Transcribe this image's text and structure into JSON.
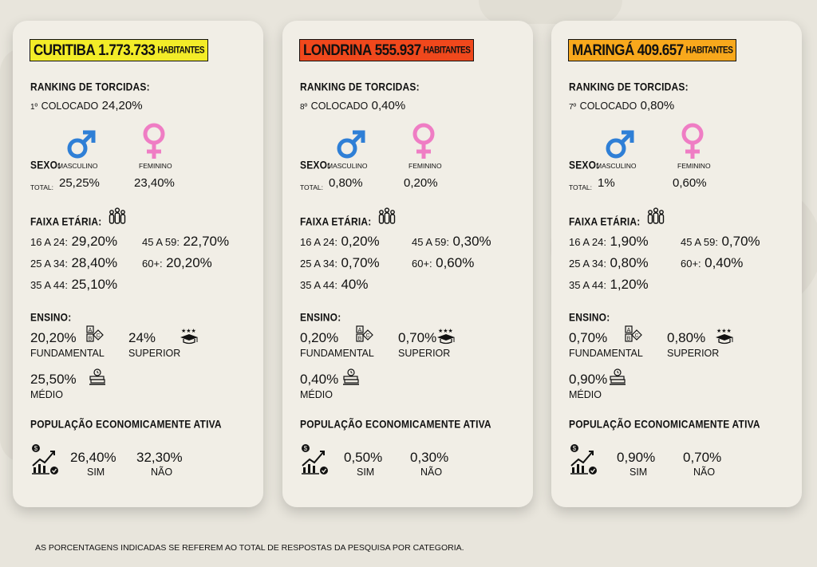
{
  "cards": [
    {
      "city": "CURITIBA",
      "population": "1.773.733",
      "habitantes": "HABITANTES",
      "title_color": "#f3ec28",
      "ranking_title": "RANKING DE TORCIDAS:",
      "ranking_ord": "1º",
      "ranking_label": "COLOCADO",
      "ranking_value": "24,20%",
      "sexo_label": "SEXO:",
      "masculino": "MASCULINO",
      "feminino": "FEMININO",
      "total_label": "TOTAL:",
      "male_value": "25,25%",
      "female_value": "23,40%",
      "faixa_title": "FAIXA ETÁRIA:",
      "age": {
        "a16_label": "16 A 24:",
        "a16": "29,20%",
        "a25_label": "25 A 34:",
        "a25": "28,40%",
        "a35_label": "35 A 44:",
        "a35": "25,10%",
        "a45_label": "45 A 59:",
        "a45": "22,70%",
        "a60_label": "60+:",
        "a60": "20,20%"
      },
      "ensino_title": "ENSINO:",
      "fundamental_value": "20,20%",
      "fundamental_label": "FUNDAMENTAL",
      "superior_value": "24%",
      "superior_label": "SUPERIOR",
      "medio_value": "25,50%",
      "medio_label": "MÉDIO",
      "pea_title": "POPULAÇÃO ECONOMICAMENTE ATIVA",
      "sim_value": "26,40%",
      "sim_label": "SIM",
      "nao_value": "32,30%",
      "nao_label": "NÃO"
    },
    {
      "city": "LONDRINA",
      "population": "555.937",
      "habitantes": "HABITANTES",
      "title_color": "#f0481c",
      "ranking_title": "RANKING DE TORCIDAS:",
      "ranking_ord": "8º",
      "ranking_label": "COLOCADO",
      "ranking_value": "0,40%",
      "sexo_label": "SEXO:",
      "masculino": "MASCULINO",
      "feminino": "FEMININO",
      "total_label": "TOTAL:",
      "male_value": "0,80%",
      "female_value": "0,20%",
      "faixa_title": "FAIXA ETÁRIA:",
      "age": {
        "a16_label": "16 A 24:",
        "a16": "0,20%",
        "a25_label": "25 A 34:",
        "a25": "0,70%",
        "a35_label": "35 A 44:",
        "a35": "40%",
        "a45_label": "45 A 59:",
        "a45": "0,30%",
        "a60_label": "60+:",
        "a60": "0,60%"
      },
      "ensino_title": "ENSINO:",
      "fundamental_value": "0,20%",
      "fundamental_label": "FUNDAMENTAL",
      "superior_value": "0,70%",
      "superior_label": "SUPERIOR",
      "medio_value": "0,40%",
      "medio_label": "MÉDIO",
      "pea_title": "POPULAÇÃO ECONOMICAMENTE ATIVA",
      "sim_value": "0,50%",
      "sim_label": "SIM",
      "nao_value": "0,30%",
      "nao_label": "NÃO"
    },
    {
      "city": "MARINGÁ",
      "population": "409.657",
      "habitantes": "HABITANTES",
      "title_color": "#f8a81c",
      "ranking_title": "RANKING DE TORCIDAS:",
      "ranking_ord": "7º",
      "ranking_label": "COLOCADO",
      "ranking_value": "0,80%",
      "sexo_label": "SEXO:",
      "masculino": "MASCULINO",
      "feminino": "FEMININO",
      "total_label": "TOTAL:",
      "male_value": "1%",
      "female_value": "0,60%",
      "faixa_title": "FAIXA ETÁRIA:",
      "age": {
        "a16_label": "16 A 24:",
        "a16": "1,90%",
        "a25_label": "25 A 34:",
        "a25": "0,80%",
        "a35_label": "35 A 44:",
        "a35": "1,20%",
        "a45_label": "45 A 59:",
        "a45": "0,70%",
        "a60_label": "60+:",
        "a60": "0,40%"
      },
      "ensino_title": "ENSINO:",
      "fundamental_value": "0,70%",
      "fundamental_label": "FUNDAMENTAL",
      "superior_value": "0,80%",
      "superior_label": "SUPERIOR",
      "medio_value": "0,90%",
      "medio_label": "MÉDIO",
      "pea_title": "POPULAÇÃO ECONOMICAMENTE ATIVA",
      "sim_value": "0,90%",
      "sim_label": "SIM",
      "nao_value": "0,70%",
      "nao_label": "NÃO"
    }
  ],
  "colors": {
    "male": "#2f7fd6",
    "female": "#ef7dc4",
    "card": "#f1eee6",
    "background": "#e8e5dc"
  },
  "icons": [
    "male-symbol-icon",
    "female-symbol-icon",
    "people-group-icon",
    "abc-blocks-icon",
    "graduation-cap-icon",
    "books-clock-icon",
    "growth-chart-money-icon"
  ],
  "footer": "AS PORCENTAGENS INDICADAS SE REFEREM AO TOTAL DE RESPOSTAS DA PESQUISA POR CATEGORIA."
}
